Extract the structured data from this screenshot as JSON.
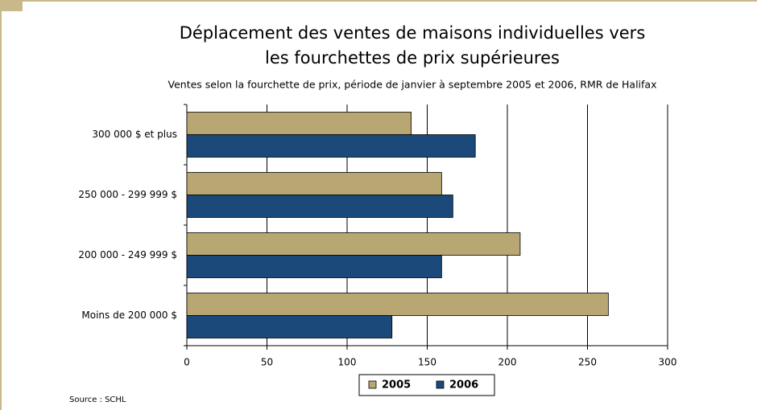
{
  "chart_data": {
    "type": "hbar",
    "title": [
      "Déplacement des ventes de maisons individuelles vers",
      "les fourchettes de prix supérieures"
    ],
    "subtitle": "Ventes selon la fourchette de prix, période de janvier à septembre 2005 et 2006, RMR de Halifax",
    "categories": [
      "300 000 $ et plus",
      "250 000 - 299 999 $",
      "200 000 - 249 999 $",
      "Moins de 200 000 $"
    ],
    "series": [
      {
        "name": "2005",
        "color": "#b8a772",
        "values": [
          140,
          159,
          208,
          263
        ]
      },
      {
        "name": "2006",
        "color": "#1b4a7a",
        "values": [
          180,
          166,
          159,
          128
        ]
      }
    ],
    "xlim": [
      0,
      300
    ],
    "xticks": [
      0,
      50,
      100,
      150,
      200,
      250,
      300
    ],
    "grid": true,
    "legend": "bottom",
    "source": "Source : SCHL"
  }
}
